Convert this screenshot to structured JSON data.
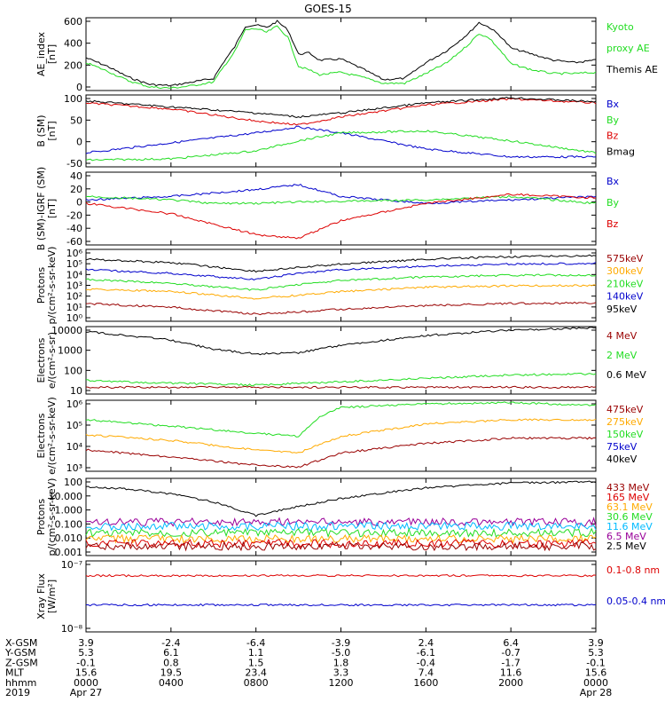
{
  "title": "GOES-15",
  "colors": {
    "black": "#000000",
    "green": "#22dd22",
    "red": "#dd0000",
    "blue": "#0000cc",
    "orange": "#ffaa00",
    "darkred": "#990000",
    "lightblue": "#00bbff",
    "yellow": "#dddd00",
    "purple": "#990099",
    "lightgreen": "#33ff33"
  },
  "chart_data": [
    {
      "type": "line",
      "ylabel": [
        "AE_index",
        "[nT]"
      ],
      "yticks": [
        "600",
        "400",
        "200",
        "0"
      ],
      "ylim": [
        0,
        600
      ],
      "legend": [
        {
          "name": "Kyoto",
          "color": "#22dd22"
        },
        {
          "name": "proxy AE",
          "color": "#22dd22"
        },
        {
          "name": "Themis AE",
          "color": "#000000"
        }
      ],
      "series": [
        {
          "name": "Themis AE",
          "color": "#000000",
          "x": [
            0,
            1,
            2,
            3,
            4,
            5,
            6,
            6.5,
            7,
            7.5,
            8,
            8.5,
            9,
            9.5,
            10,
            10.5,
            11,
            12,
            13,
            14,
            15,
            16,
            17,
            18,
            18.5,
            19,
            19.5,
            20,
            21,
            22,
            23,
            24
          ],
          "y": [
            270,
            200,
            110,
            50,
            40,
            70,
            100,
            240,
            360,
            530,
            540,
            520,
            570,
            500,
            300,
            310,
            250,
            260,
            180,
            90,
            100,
            230,
            330,
            470,
            560,
            520,
            450,
            350,
            300,
            250,
            230,
            250
          ]
        },
        {
          "name": "Kyoto proxy AE",
          "color": "#22dd22",
          "x": [
            0,
            1,
            2,
            3,
            4,
            5,
            6,
            6.5,
            7,
            7.5,
            8,
            8.5,
            9,
            9.5,
            10,
            10.5,
            11,
            12,
            13,
            14,
            15,
            16,
            17,
            18,
            18.5,
            19,
            19.5,
            20,
            21,
            22,
            23,
            24
          ],
          "y": [
            230,
            160,
            80,
            30,
            20,
            40,
            70,
            200,
            320,
            500,
            510,
            480,
            530,
            440,
            200,
            170,
            130,
            150,
            110,
            60,
            60,
            140,
            230,
            380,
            470,
            430,
            330,
            220,
            170,
            140,
            140,
            150
          ]
        }
      ]
    },
    {
      "type": "line",
      "ylabel": [
        "B (SM)",
        "[nT]"
      ],
      "yticks": [
        "100",
        "50",
        "0",
        "-50"
      ],
      "ylim": [
        -55,
        125
      ],
      "legend": [
        {
          "name": "Bx",
          "color": "#0000cc"
        },
        {
          "name": "By",
          "color": "#22dd22"
        },
        {
          "name": "Bz",
          "color": "#dd0000"
        },
        {
          "name": "Bmag",
          "color": "#000000"
        }
      ],
      "series": [
        {
          "name": "Bx",
          "color": "#0000cc",
          "x": [
            0,
            4,
            8,
            10,
            12,
            16,
            20,
            24
          ],
          "y": [
            -20,
            5,
            30,
            45,
            30,
            -10,
            -30,
            -30
          ]
        },
        {
          "name": "By",
          "color": "#22dd22",
          "x": [
            0,
            4,
            8,
            10,
            12,
            16,
            20,
            24
          ],
          "y": [
            -38,
            -35,
            -15,
            10,
            30,
            35,
            10,
            -20
          ]
        },
        {
          "name": "Bz",
          "color": "#dd0000",
          "x": [
            0,
            4,
            8,
            10,
            12,
            16,
            20,
            24
          ],
          "y": [
            105,
            90,
            60,
            50,
            70,
            100,
            115,
            105
          ]
        },
        {
          "name": "Bmag",
          "color": "#000000",
          "x": [
            0,
            4,
            8,
            10,
            12,
            16,
            20,
            24
          ],
          "y": [
            110,
            95,
            80,
            70,
            80,
            105,
            118,
            108
          ]
        }
      ]
    },
    {
      "type": "line",
      "ylabel": [
        "B (SM)-IGRF (SM)",
        "[nT]"
      ],
      "yticks": [
        "40",
        "20",
        "0",
        "-20",
        "-40",
        "-60"
      ],
      "ylim": [
        -65,
        40
      ],
      "legend": [
        {
          "name": "Bx",
          "color": "#0000cc"
        },
        {
          "name": "By",
          "color": "#22dd22"
        },
        {
          "name": "Bz",
          "color": "#dd0000"
        }
      ],
      "series": [
        {
          "name": "Bx",
          "color": "#0000cc",
          "x": [
            0,
            4,
            6,
            8,
            10,
            12,
            16,
            20,
            24
          ],
          "y": [
            0,
            5,
            10,
            15,
            22,
            5,
            -5,
            0,
            5
          ]
        },
        {
          "name": "By",
          "color": "#22dd22",
          "x": [
            0,
            4,
            6,
            8,
            10,
            12,
            16,
            20,
            24
          ],
          "y": [
            5,
            0,
            -5,
            -5,
            -3,
            -2,
            0,
            5,
            -5
          ]
        },
        {
          "name": "Bz",
          "color": "#dd0000",
          "x": [
            0,
            4,
            6,
            8,
            10,
            12,
            16,
            20,
            24
          ],
          "y": [
            -5,
            -20,
            -35,
            -50,
            -55,
            -30,
            -5,
            8,
            3
          ]
        }
      ]
    },
    {
      "type": "line",
      "ylabel": [
        "Protons",
        "p/(cm²-s-sr-keV)"
      ],
      "ylog": true,
      "yticks": [
        "10⁶",
        "10⁵",
        "10⁴",
        "10³",
        "10²",
        "10¹",
        "10⁰"
      ],
      "ylim": [
        1,
        1000000
      ],
      "legend": [
        {
          "name": "575keV",
          "color": "#990000"
        },
        {
          "name": "300keV",
          "color": "#ffaa00"
        },
        {
          "name": "210keV",
          "color": "#22dd22"
        },
        {
          "name": "140keV",
          "color": "#0000cc"
        },
        {
          "name": "95keV",
          "color": "#000000"
        }
      ],
      "series": [
        {
          "name": "95keV",
          "color": "#000000",
          "x": [
            0,
            4,
            8,
            10,
            12,
            16,
            20,
            24
          ],
          "y": [
            150000,
            80000,
            15000,
            30000,
            60000,
            150000,
            250000,
            300000
          ]
        },
        {
          "name": "140keV",
          "color": "#0000cc",
          "x": [
            0,
            4,
            8,
            10,
            12,
            16,
            20,
            24
          ],
          "y": [
            20000,
            10000,
            3000,
            10000,
            20000,
            40000,
            60000,
            70000
          ]
        },
        {
          "name": "210keV",
          "color": "#22dd22",
          "x": [
            0,
            4,
            8,
            10,
            12,
            16,
            20,
            24
          ],
          "y": [
            3000,
            1500,
            400,
            1200,
            2500,
            5000,
            7000,
            7000
          ]
        },
        {
          "name": "300keV",
          "color": "#ffaa00",
          "x": [
            0,
            4,
            8,
            10,
            12,
            16,
            20,
            24
          ],
          "y": [
            500,
            300,
            80,
            150,
            300,
            700,
            900,
            1000
          ]
        },
        {
          "name": "575keV",
          "color": "#990000",
          "x": [
            0,
            4,
            8,
            10,
            12,
            16,
            20,
            24
          ],
          "y": [
            30,
            15,
            4,
            6,
            10,
            20,
            30,
            35
          ]
        }
      ]
    },
    {
      "type": "line",
      "ylabel": [
        "Electrons",
        "e/(cm²-s-sr)"
      ],
      "ylog": true,
      "yticks": [
        "10000",
        "1000",
        "100",
        "10"
      ],
      "ylim": [
        10,
        10000
      ],
      "legend": [
        {
          "name": "4 MeV",
          "color": "#990000"
        },
        {
          "name": "2 MeV",
          "color": "#22dd22"
        },
        {
          "name": "0.6 MeV",
          "color": "#000000"
        }
      ],
      "series": [
        {
          "name": "0.6 MeV",
          "color": "#000000",
          "x": [
            0,
            2,
            4,
            6,
            8,
            10,
            12,
            16,
            20,
            24
          ],
          "y": [
            6000,
            4000,
            2500,
            1000,
            600,
            700,
            1500,
            4000,
            7000,
            9000
          ]
        },
        {
          "name": "2 MeV",
          "color": "#22dd22",
          "x": [
            0,
            4,
            8,
            12,
            16,
            20,
            24
          ],
          "y": [
            40,
            30,
            25,
            35,
            50,
            70,
            80
          ]
        },
        {
          "name": "4 MeV",
          "color": "#990000",
          "x": [
            0,
            4,
            8,
            12,
            16,
            20,
            24
          ],
          "y": [
            20,
            20,
            20,
            20,
            20,
            20,
            20
          ]
        }
      ]
    },
    {
      "type": "line",
      "ylabel": [
        "Electrons",
        "e/(cm²-s-sr-keV)"
      ],
      "ylog": true,
      "yticks": [
        "10⁶",
        "10⁵",
        "10⁴",
        "10³"
      ],
      "ylim": [
        1000,
        1000000
      ],
      "legend": [
        {
          "name": "475keV",
          "color": "#990000"
        },
        {
          "name": "275keV",
          "color": "#ffaa00"
        },
        {
          "name": "150keV",
          "color": "#22dd22"
        },
        {
          "name": "75keV",
          "color": "#0000cc"
        },
        {
          "name": "40keV",
          "color": "#000000"
        }
      ],
      "series": [
        {
          "name": "150keV",
          "color": "#22dd22",
          "x": [
            0,
            4,
            8,
            10,
            11,
            12,
            16,
            20,
            24
          ],
          "y": [
            150000,
            80000,
            40000,
            30000,
            200000,
            500000,
            700000,
            800000,
            600000
          ]
        },
        {
          "name": "275keV",
          "color": "#ffaa00",
          "x": [
            0,
            4,
            8,
            10,
            12,
            16,
            20,
            24
          ],
          "y": [
            35000,
            20000,
            8000,
            6000,
            30000,
            100000,
            150000,
            150000
          ]
        },
        {
          "name": "475keV",
          "color": "#990000",
          "x": [
            0,
            4,
            8,
            10,
            12,
            16,
            20,
            24
          ],
          "y": [
            8000,
            4000,
            1800,
            1500,
            6000,
            15000,
            25000,
            25000
          ]
        }
      ]
    },
    {
      "type": "line",
      "ylabel": [
        "Protons",
        "p/(cm²-s-sr-keV)"
      ],
      "ylog": true,
      "yticks": [
        "100",
        "10.000",
        "1.000",
        "0.100",
        "0.010",
        "0.001"
      ],
      "ylim": [
        0.001,
        100
      ],
      "legend": [
        {
          "name": "433 MeV",
          "color": "#990000"
        },
        {
          "name": "165 MeV",
          "color": "#dd0000"
        },
        {
          "name": "63.1 MeV",
          "color": "#ffaa00"
        },
        {
          "name": "30.6 MeV",
          "color": "#22dd22"
        },
        {
          "name": "11.6 MeV",
          "color": "#00bbff"
        },
        {
          "name": "6.5 MeV",
          "color": "#990099"
        },
        {
          "name": "2.5 MeV",
          "color": "#000000"
        }
      ],
      "series": [
        {
          "name": "2.5 MeV",
          "color": "#000000",
          "x": [
            0,
            2,
            4,
            6,
            8,
            10,
            12,
            16,
            20,
            24
          ],
          "y": [
            30,
            20,
            10,
            3,
            0.4,
            1.5,
            5,
            25,
            50,
            60
          ]
        },
        {
          "name": "6.5 MeV",
          "color": "#990099",
          "x": [
            0,
            24
          ],
          "y": [
            0.15,
            0.15
          ]
        },
        {
          "name": "11.6 MeV",
          "color": "#00bbff",
          "x": [
            0,
            24
          ],
          "y": [
            0.08,
            0.08
          ]
        },
        {
          "name": "30.6 MeV",
          "color": "#22dd22",
          "x": [
            0,
            24
          ],
          "y": [
            0.03,
            0.03
          ]
        },
        {
          "name": "63.1 MeV",
          "color": "#ffaa00",
          "x": [
            0,
            24
          ],
          "y": [
            0.012,
            0.012
          ]
        },
        {
          "name": "165 MeV",
          "color": "#dd0000",
          "x": [
            0,
            24
          ],
          "y": [
            0.006,
            0.006
          ]
        },
        {
          "name": "433 MeV",
          "color": "#990000",
          "x": [
            0,
            24
          ],
          "y": [
            0.004,
            0.004
          ]
        }
      ]
    },
    {
      "type": "line",
      "ylabel": [
        "Xray Flux",
        "[W/m²]"
      ],
      "ylog": true,
      "yticks": [
        "10⁻⁷",
        "10⁻⁸"
      ],
      "ylim": [
        1e-08,
        1e-07
      ],
      "legend": [
        {
          "name": "0.1-0.8 nm",
          "color": "#dd0000"
        },
        {
          "name": "0.05-0.4 nm",
          "color": "#0000cc"
        }
      ],
      "series": [
        {
          "name": "0.1-0.8 nm",
          "color": "#dd0000",
          "x": [
            0,
            24
          ],
          "y": [
            6.2e-08,
            6.2e-08
          ]
        },
        {
          "name": "0.05-0.4 nm",
          "color": "#0000cc",
          "x": [
            0,
            24
          ],
          "y": [
            2.4e-08,
            2.4e-08
          ]
        }
      ]
    }
  ],
  "x_axis_rows": [
    {
      "label": "X-GSM",
      "values": [
        "3.9",
        "-2.4",
        "-6.4",
        "-3.9",
        "2.4",
        "6.4",
        "3.9"
      ]
    },
    {
      "label": "Y-GSM",
      "values": [
        "5.3",
        "6.1",
        "1.1",
        "-5.0",
        "-6.1",
        "-0.7",
        "5.3"
      ]
    },
    {
      "label": "Z-GSM",
      "values": [
        "-0.1",
        "0.8",
        "1.5",
        "1.8",
        "-0.4",
        "-1.7",
        "-0.1"
      ]
    },
    {
      "label": "MLT",
      "values": [
        "15.6",
        "19.5",
        "23.4",
        "3.3",
        "7.4",
        "11.6",
        "15.6"
      ]
    },
    {
      "label": "hhmm",
      "values": [
        "0000",
        "0400",
        "0800",
        "1200",
        "1600",
        "2000",
        "0000"
      ]
    },
    {
      "label": "2019",
      "values": [
        "Apr 27",
        "",
        "",
        "",
        "",
        "",
        "Apr 28"
      ]
    }
  ],
  "x_hours": [
    0,
    4,
    8,
    12,
    16,
    20,
    24
  ]
}
